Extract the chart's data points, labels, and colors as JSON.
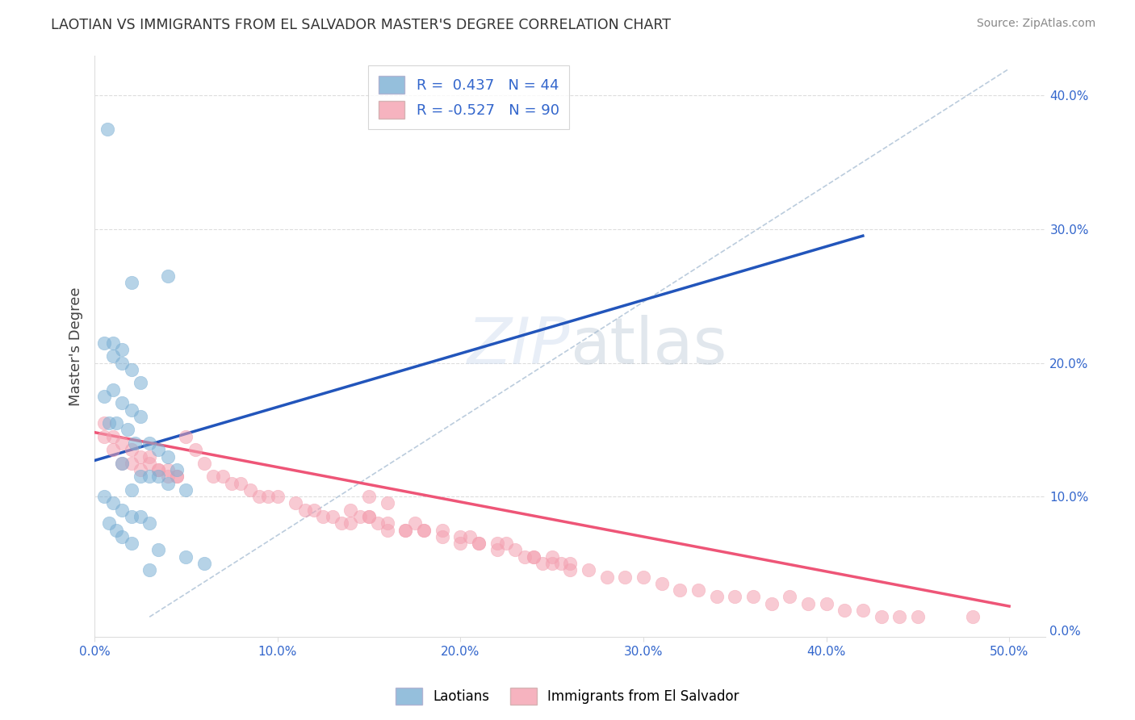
{
  "title": "LAOTIAN VS IMMIGRANTS FROM EL SALVADOR MASTER'S DEGREE CORRELATION CHART",
  "source": "Source: ZipAtlas.com",
  "ylabel": "Master's Degree",
  "x_label_ticks": [
    "0.0%",
    "10.0%",
    "20.0%",
    "30.0%",
    "40.0%",
    "50.0%"
  ],
  "x_ticks": [
    0.0,
    0.1,
    0.2,
    0.3,
    0.4,
    0.5
  ],
  "y_label_ticks_right": [
    "0.0%",
    "10.0%",
    "20.0%",
    "30.0%",
    "40.0%"
  ],
  "y_ticks_right": [
    0.0,
    0.1,
    0.2,
    0.3,
    0.4
  ],
  "xlim": [
    0.0,
    0.52
  ],
  "ylim": [
    -0.005,
    0.43
  ],
  "blue_R": 0.437,
  "blue_N": 44,
  "pink_R": -0.527,
  "pink_N": 90,
  "blue_color": "#7BAFD4",
  "pink_color": "#F4A0B0",
  "blue_line_color": "#2255BB",
  "pink_line_color": "#EE5577",
  "legend_label_blue": "Laotians",
  "legend_label_pink": "Immigrants from El Salvador",
  "blue_trendline": [
    0.0,
    0.42,
    0.127,
    0.295
  ],
  "pink_trendline": [
    0.0,
    0.5,
    0.148,
    0.018
  ],
  "diag_line": [
    0.03,
    0.5,
    0.01,
    0.42
  ],
  "blue_scatter_x": [
    0.007,
    0.02,
    0.04,
    0.005,
    0.01,
    0.015,
    0.01,
    0.015,
    0.02,
    0.025,
    0.01,
    0.005,
    0.015,
    0.02,
    0.025,
    0.008,
    0.012,
    0.018,
    0.022,
    0.03,
    0.035,
    0.04,
    0.045,
    0.015,
    0.025,
    0.03,
    0.035,
    0.04,
    0.05,
    0.02,
    0.005,
    0.01,
    0.015,
    0.02,
    0.025,
    0.03,
    0.008,
    0.012,
    0.015,
    0.02,
    0.035,
    0.05,
    0.06,
    0.03
  ],
  "blue_scatter_y": [
    0.375,
    0.26,
    0.265,
    0.215,
    0.215,
    0.21,
    0.205,
    0.2,
    0.195,
    0.185,
    0.18,
    0.175,
    0.17,
    0.165,
    0.16,
    0.155,
    0.155,
    0.15,
    0.14,
    0.14,
    0.135,
    0.13,
    0.12,
    0.125,
    0.115,
    0.115,
    0.115,
    0.11,
    0.105,
    0.105,
    0.1,
    0.095,
    0.09,
    0.085,
    0.085,
    0.08,
    0.08,
    0.075,
    0.07,
    0.065,
    0.06,
    0.055,
    0.05,
    0.045
  ],
  "pink_scatter_x": [
    0.005,
    0.01,
    0.015,
    0.02,
    0.025,
    0.005,
    0.01,
    0.015,
    0.02,
    0.025,
    0.03,
    0.035,
    0.04,
    0.045,
    0.03,
    0.035,
    0.04,
    0.045,
    0.05,
    0.055,
    0.06,
    0.065,
    0.07,
    0.075,
    0.08,
    0.085,
    0.09,
    0.095,
    0.1,
    0.11,
    0.115,
    0.12,
    0.125,
    0.13,
    0.135,
    0.14,
    0.145,
    0.15,
    0.155,
    0.16,
    0.17,
    0.175,
    0.18,
    0.19,
    0.2,
    0.205,
    0.21,
    0.22,
    0.225,
    0.23,
    0.235,
    0.24,
    0.245,
    0.25,
    0.255,
    0.26,
    0.27,
    0.28,
    0.29,
    0.3,
    0.31,
    0.32,
    0.33,
    0.34,
    0.35,
    0.36,
    0.37,
    0.38,
    0.39,
    0.4,
    0.41,
    0.42,
    0.43,
    0.44,
    0.45,
    0.48,
    0.15,
    0.16,
    0.18,
    0.19,
    0.2,
    0.21,
    0.22,
    0.14,
    0.15,
    0.16,
    0.17,
    0.24,
    0.25,
    0.26
  ],
  "pink_scatter_y": [
    0.155,
    0.145,
    0.14,
    0.135,
    0.13,
    0.145,
    0.135,
    0.125,
    0.125,
    0.12,
    0.13,
    0.12,
    0.12,
    0.115,
    0.125,
    0.12,
    0.115,
    0.115,
    0.145,
    0.135,
    0.125,
    0.115,
    0.115,
    0.11,
    0.11,
    0.105,
    0.1,
    0.1,
    0.1,
    0.095,
    0.09,
    0.09,
    0.085,
    0.085,
    0.08,
    0.08,
    0.085,
    0.085,
    0.08,
    0.075,
    0.075,
    0.08,
    0.075,
    0.075,
    0.07,
    0.07,
    0.065,
    0.065,
    0.065,
    0.06,
    0.055,
    0.055,
    0.05,
    0.055,
    0.05,
    0.05,
    0.045,
    0.04,
    0.04,
    0.04,
    0.035,
    0.03,
    0.03,
    0.025,
    0.025,
    0.025,
    0.02,
    0.025,
    0.02,
    0.02,
    0.015,
    0.015,
    0.01,
    0.01,
    0.01,
    0.01,
    0.1,
    0.095,
    0.075,
    0.07,
    0.065,
    0.065,
    0.06,
    0.09,
    0.085,
    0.08,
    0.075,
    0.055,
    0.05,
    0.045
  ]
}
